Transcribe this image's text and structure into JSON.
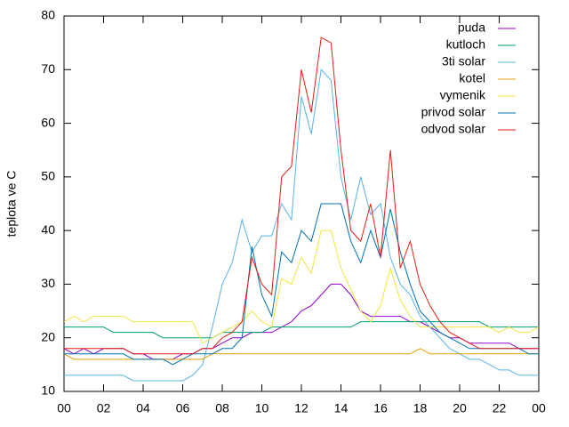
{
  "chart_data": {
    "type": "line",
    "ylabel": "teplota ve C",
    "x": [
      0,
      0.5,
      1,
      1.5,
      2,
      2.5,
      3,
      3.5,
      4,
      4.5,
      5,
      5.5,
      6,
      6.5,
      7,
      7.5,
      8,
      8.5,
      9,
      9.5,
      10,
      10.5,
      11,
      11.5,
      12,
      12.5,
      13,
      13.5,
      14,
      14.5,
      15,
      15.5,
      16,
      16.5,
      17,
      17.5,
      18,
      18.5,
      19,
      19.5,
      20,
      20.5,
      21,
      21.5,
      22,
      22.5,
      23,
      23.5,
      24
    ],
    "series": [
      {
        "name": "puda",
        "color": "#9400d3",
        "values": [
          18,
          17,
          18,
          17,
          18,
          18,
          18,
          17,
          17,
          16,
          16,
          16,
          17,
          17,
          18,
          18,
          19,
          20,
          20,
          21,
          21,
          21,
          22,
          23,
          25,
          26,
          28,
          30,
          30,
          28,
          25,
          24,
          24,
          24,
          24,
          23,
          23,
          22,
          21,
          20,
          20,
          19,
          19,
          19,
          19,
          19,
          18,
          18,
          18
        ]
      },
      {
        "name": "kutloch",
        "color": "#009e73",
        "values": [
          22,
          22,
          22,
          22,
          22,
          21,
          21,
          21,
          21,
          21,
          20,
          20,
          20,
          20,
          20,
          20,
          21,
          21,
          21,
          21,
          21,
          22,
          22,
          22,
          22,
          22,
          22,
          22,
          22,
          22,
          23,
          23,
          23,
          23,
          23,
          23,
          23,
          23,
          23,
          23,
          23,
          23,
          23,
          22,
          22,
          22,
          22,
          22,
          22
        ]
      },
      {
        "name": "3ti solar",
        "color": "#56b4e9",
        "values": [
          13,
          13,
          13,
          13,
          13,
          13,
          13,
          12,
          12,
          12,
          12,
          12,
          12,
          13,
          15,
          22,
          30,
          34,
          42,
          36,
          39,
          39,
          45,
          42,
          65,
          58,
          70,
          68,
          50,
          42,
          50,
          43,
          45,
          35,
          30,
          28,
          24,
          22,
          20,
          18,
          17,
          16,
          16,
          15,
          14,
          14,
          13,
          13,
          13
        ]
      },
      {
        "name": "kotel",
        "color": "#e69f00",
        "values": [
          17,
          16,
          16,
          16,
          16,
          16,
          16,
          16,
          16,
          16,
          16,
          16,
          16,
          16,
          16,
          17,
          17,
          17,
          17,
          17,
          17,
          17,
          17,
          17,
          17,
          17,
          17,
          17,
          17,
          17,
          17,
          17,
          17,
          17,
          17,
          17,
          18,
          17,
          17,
          17,
          17,
          17,
          17,
          17,
          17,
          17,
          17,
          17,
          17
        ]
      },
      {
        "name": "vymenik",
        "color": "#f0e442",
        "values": [
          23,
          24,
          23,
          24,
          24,
          24,
          24,
          23,
          23,
          23,
          23,
          23,
          23,
          23,
          19,
          20,
          21,
          22,
          23,
          25,
          23,
          22,
          31,
          30,
          35,
          32,
          40,
          40,
          33,
          29,
          25,
          23,
          26,
          33,
          27,
          24,
          22,
          22,
          22,
          22,
          22,
          22,
          22,
          22,
          21,
          22,
          21,
          21,
          22
        ]
      },
      {
        "name": "privod solar",
        "color": "#0072b2",
        "values": [
          17,
          17,
          17,
          17,
          17,
          17,
          17,
          16,
          16,
          16,
          16,
          15,
          16,
          17,
          17,
          17,
          18,
          18,
          20,
          37,
          28,
          24,
          36,
          34,
          40,
          38,
          45,
          45,
          45,
          38,
          34,
          40,
          35,
          44,
          36,
          30,
          25,
          23,
          21,
          20,
          19,
          18,
          18,
          18,
          18,
          18,
          18,
          17,
          17
        ]
      },
      {
        "name": "odvod solar",
        "color": "#e51e10",
        "values": [
          18,
          18,
          18,
          18,
          18,
          18,
          18,
          17,
          17,
          17,
          17,
          17,
          17,
          17,
          18,
          18,
          20,
          21,
          23,
          35,
          30,
          28,
          50,
          52,
          70,
          62,
          76,
          75,
          55,
          40,
          38,
          45,
          35,
          55,
          33,
          38,
          30,
          26,
          23,
          21,
          20,
          19,
          18,
          18,
          18,
          18,
          18,
          18,
          18
        ]
      }
    ],
    "xlim": [
      0,
      24
    ],
    "xticks": [
      {
        "value": 0,
        "label": "00"
      },
      {
        "value": 2,
        "label": "02"
      },
      {
        "value": 4,
        "label": "04"
      },
      {
        "value": 6,
        "label": "06"
      },
      {
        "value": 8,
        "label": "08"
      },
      10,
      12,
      14,
      16,
      18,
      20,
      22,
      {
        "value": 24,
        "label": "00"
      }
    ],
    "ylim": [
      10,
      80
    ],
    "yticks": [
      10,
      20,
      30,
      40,
      50,
      60,
      70,
      80
    ],
    "legend": "upper right"
  }
}
